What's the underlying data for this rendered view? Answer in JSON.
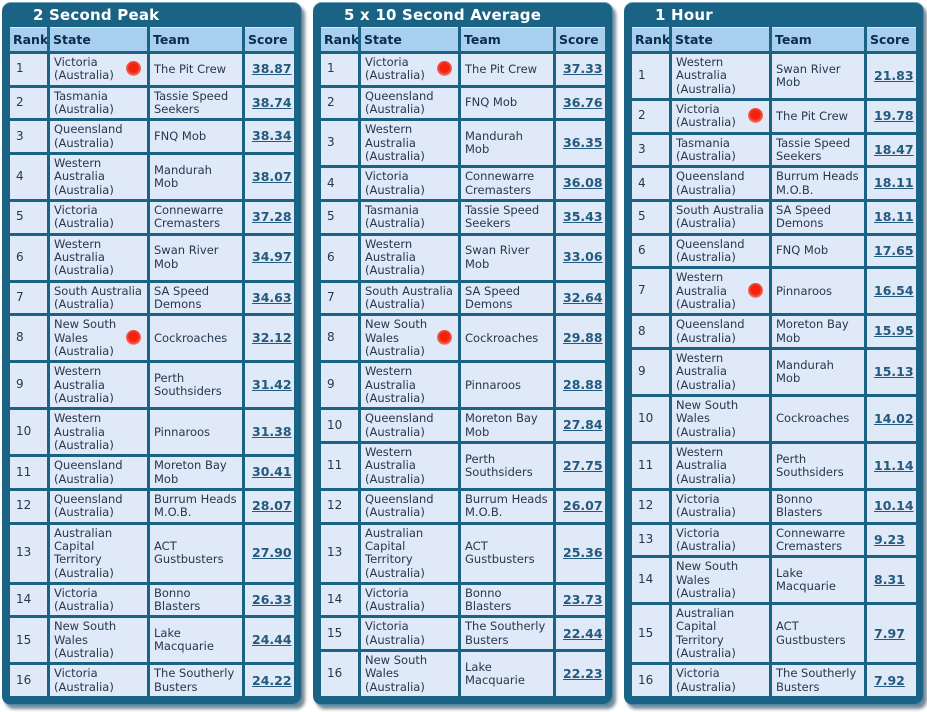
{
  "page_background": "#ffffff",
  "colors": {
    "panel_teal": "#1a6385",
    "title_text": "#ffffff",
    "header_bg": "#a8cfee",
    "header_text": "#0a2b52",
    "cell_bg": "#dfe9f7",
    "cell_text": "#26384d",
    "score_link": "#235a7e",
    "highlight_dot_red": "#ee2211"
  },
  "tables": [
    {
      "title": "2 Second Peak",
      "columns": [
        "Rank",
        "State",
        "Team",
        "Score"
      ],
      "rows": [
        {
          "rank": "1",
          "state": "Victoria (Australia)",
          "team": "The Pit Crew",
          "score": "38.87",
          "highlight_dot": true
        },
        {
          "rank": "2",
          "state": "Tasmania (Australia)",
          "team": "Tassie Speed Seekers",
          "score": "38.74",
          "highlight_dot": false
        },
        {
          "rank": "3",
          "state": "Queensland (Australia)",
          "team": "FNQ Mob",
          "score": "38.34",
          "highlight_dot": false
        },
        {
          "rank": "4",
          "state": "Western Australia (Australia)",
          "team": "Mandurah Mob",
          "score": "38.07",
          "highlight_dot": false
        },
        {
          "rank": "5",
          "state": "Victoria (Australia)",
          "team": "Connewarre Cremasters",
          "score": "37.28",
          "highlight_dot": false
        },
        {
          "rank": "6",
          "state": "Western Australia (Australia)",
          "team": "Swan River Mob",
          "score": "34.97",
          "highlight_dot": false
        },
        {
          "rank": "7",
          "state": "South Australia (Australia)",
          "team": "SA Speed Demons",
          "score": "34.63",
          "highlight_dot": false
        },
        {
          "rank": "8",
          "state": "New South Wales (Australia)",
          "team": "Cockroaches",
          "score": "32.12",
          "highlight_dot": true
        },
        {
          "rank": "9",
          "state": "Western Australia (Australia)",
          "team": "Perth Southsiders",
          "score": "31.42",
          "highlight_dot": false
        },
        {
          "rank": "10",
          "state": "Western Australia (Australia)",
          "team": "Pinnaroos",
          "score": "31.38",
          "highlight_dot": false
        },
        {
          "rank": "11",
          "state": "Queensland (Australia)",
          "team": "Moreton Bay Mob",
          "score": "30.41",
          "highlight_dot": false
        },
        {
          "rank": "12",
          "state": "Queensland (Australia)",
          "team": "Burrum Heads M.O.B.",
          "score": "28.07",
          "highlight_dot": false
        },
        {
          "rank": "13",
          "state": "Australian Capital Territory (Australia)",
          "team": "ACT Gustbusters",
          "score": "27.90",
          "highlight_dot": false
        },
        {
          "rank": "14",
          "state": "Victoria (Australia)",
          "team": "Bonno Blasters",
          "score": "26.33",
          "highlight_dot": false
        },
        {
          "rank": "15",
          "state": "New South Wales (Australia)",
          "team": "Lake Macquarie",
          "score": "24.44",
          "highlight_dot": false
        },
        {
          "rank": "16",
          "state": "Victoria (Australia)",
          "team": "The Southerly Busters",
          "score": "24.22",
          "highlight_dot": false
        }
      ]
    },
    {
      "title": "5 x 10 Second Average",
      "columns": [
        "Rank",
        "State",
        "Team",
        "Score"
      ],
      "rows": [
        {
          "rank": "1",
          "state": "Victoria (Australia)",
          "team": "The Pit Crew",
          "score": "37.33",
          "highlight_dot": true
        },
        {
          "rank": "2",
          "state": "Queensland (Australia)",
          "team": "FNQ Mob",
          "score": "36.76",
          "highlight_dot": false
        },
        {
          "rank": "3",
          "state": "Western Australia (Australia)",
          "team": "Mandurah Mob",
          "score": "36.35",
          "highlight_dot": false
        },
        {
          "rank": "4",
          "state": "Victoria (Australia)",
          "team": "Connewarre Cremasters",
          "score": "36.08",
          "highlight_dot": false
        },
        {
          "rank": "5",
          "state": "Tasmania (Australia)",
          "team": "Tassie Speed Seekers",
          "score": "35.43",
          "highlight_dot": false
        },
        {
          "rank": "6",
          "state": "Western Australia (Australia)",
          "team": "Swan River Mob",
          "score": "33.06",
          "highlight_dot": false
        },
        {
          "rank": "7",
          "state": "South Australia (Australia)",
          "team": "SA Speed Demons",
          "score": "32.64",
          "highlight_dot": false
        },
        {
          "rank": "8",
          "state": "New South Wales (Australia)",
          "team": "Cockroaches",
          "score": "29.88",
          "highlight_dot": true
        },
        {
          "rank": "9",
          "state": "Western Australia (Australia)",
          "team": "Pinnaroos",
          "score": "28.88",
          "highlight_dot": false
        },
        {
          "rank": "10",
          "state": "Queensland (Australia)",
          "team": "Moreton Bay Mob",
          "score": "27.84",
          "highlight_dot": false
        },
        {
          "rank": "11",
          "state": "Western Australia (Australia)",
          "team": "Perth Southsiders",
          "score": "27.75",
          "highlight_dot": false
        },
        {
          "rank": "12",
          "state": "Queensland (Australia)",
          "team": "Burrum Heads M.O.B.",
          "score": "26.07",
          "highlight_dot": false
        },
        {
          "rank": "13",
          "state": "Australian Capital Territory (Australia)",
          "team": "ACT Gustbusters",
          "score": "25.36",
          "highlight_dot": false
        },
        {
          "rank": "14",
          "state": "Victoria (Australia)",
          "team": "Bonno Blasters",
          "score": "23.73",
          "highlight_dot": false
        },
        {
          "rank": "15",
          "state": "Victoria (Australia)",
          "team": "The Southerly Busters",
          "score": "22.44",
          "highlight_dot": false
        },
        {
          "rank": "16",
          "state": "New South Wales (Australia)",
          "team": "Lake Macquarie",
          "score": "22.23",
          "highlight_dot": false
        }
      ]
    },
    {
      "title": "1 Hour",
      "columns": [
        "Rank",
        "State",
        "Team",
        "Score"
      ],
      "rows": [
        {
          "rank": "1",
          "state": "Western Australia (Australia)",
          "team": "Swan River Mob",
          "score": "21.83",
          "highlight_dot": false
        },
        {
          "rank": "2",
          "state": "Victoria (Australia)",
          "team": "The Pit Crew",
          "score": "19.78",
          "highlight_dot": true
        },
        {
          "rank": "3",
          "state": "Tasmania (Australia)",
          "team": "Tassie Speed Seekers",
          "score": "18.47",
          "highlight_dot": false
        },
        {
          "rank": "4",
          "state": "Queensland (Australia)",
          "team": "Burrum Heads M.O.B.",
          "score": "18.11",
          "highlight_dot": false
        },
        {
          "rank": "5",
          "state": "South Australia (Australia)",
          "team": "SA Speed Demons",
          "score": "18.11",
          "highlight_dot": false
        },
        {
          "rank": "6",
          "state": "Queensland (Australia)",
          "team": "FNQ Mob",
          "score": "17.65",
          "highlight_dot": false
        },
        {
          "rank": "7",
          "state": "Western Australia (Australia)",
          "team": "Pinnaroos",
          "score": "16.54",
          "highlight_dot": true
        },
        {
          "rank": "8",
          "state": "Queensland (Australia)",
          "team": "Moreton Bay Mob",
          "score": "15.95",
          "highlight_dot": false
        },
        {
          "rank": "9",
          "state": "Western Australia (Australia)",
          "team": "Mandurah Mob",
          "score": "15.13",
          "highlight_dot": false
        },
        {
          "rank": "10",
          "state": "New South Wales (Australia)",
          "team": "Cockroaches",
          "score": "14.02",
          "highlight_dot": false
        },
        {
          "rank": "11",
          "state": "Western Australia (Australia)",
          "team": "Perth Southsiders",
          "score": "11.14",
          "highlight_dot": false
        },
        {
          "rank": "12",
          "state": "Victoria (Australia)",
          "team": "Bonno Blasters",
          "score": "10.14",
          "highlight_dot": false
        },
        {
          "rank": "13",
          "state": "Victoria (Australia)",
          "team": "Connewarre Cremasters",
          "score": "9.23",
          "highlight_dot": false
        },
        {
          "rank": "14",
          "state": "New South Wales (Australia)",
          "team": "Lake Macquarie",
          "score": "8.31",
          "highlight_dot": false
        },
        {
          "rank": "15",
          "state": "Australian Capital Territory (Australia)",
          "team": "ACT Gustbusters",
          "score": "7.97",
          "highlight_dot": false
        },
        {
          "rank": "16",
          "state": "Victoria (Australia)",
          "team": "The Southerly Busters",
          "score": "7.92",
          "highlight_dot": false
        }
      ]
    }
  ]
}
